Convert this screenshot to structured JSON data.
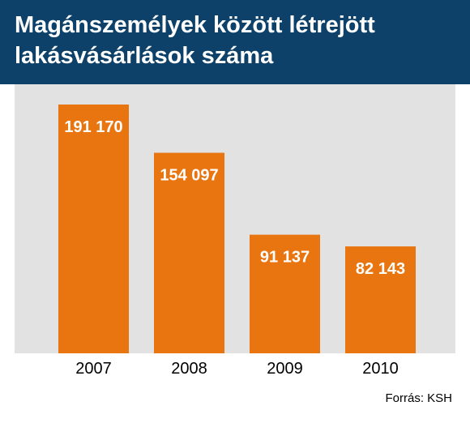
{
  "header": {
    "title": "Magánszemélyek között létrejött lakásvásárlások száma"
  },
  "source": "Forrás: KSH",
  "colors": {
    "header_bg": "#0d4169",
    "bar": "#e8750f",
    "plot_bg": "#e2e2e2"
  },
  "chart_data": {
    "type": "bar",
    "title": "Magánszemélyek között létrejött lakásvásárlások száma",
    "categories": [
      "2007",
      "2008",
      "2009",
      "2010"
    ],
    "values": [
      191170,
      154097,
      91137,
      82143
    ],
    "value_labels": [
      "191 170",
      "154 097",
      "91 137",
      "82 143"
    ],
    "xlabel": "",
    "ylabel": "",
    "grid": false,
    "legend": "none"
  }
}
